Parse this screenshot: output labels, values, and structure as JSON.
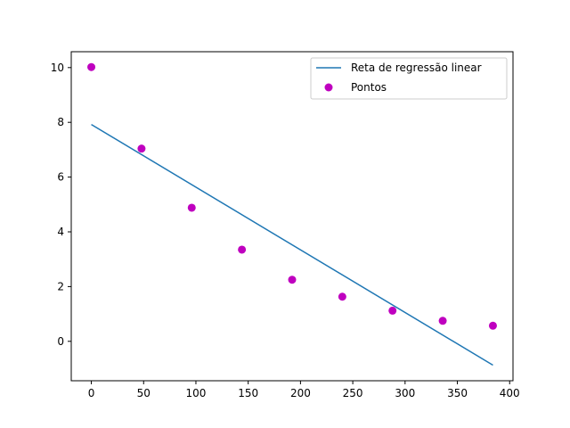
{
  "chart_data": {
    "type": "scatter",
    "title": "",
    "xlabel": "",
    "ylabel": "",
    "xlim": [
      -19.2,
      403.2
    ],
    "ylim": [
      -1.44,
      10.58
    ],
    "xticks": [
      0,
      50,
      100,
      150,
      200,
      250,
      300,
      350,
      400
    ],
    "yticks": [
      0,
      2,
      4,
      6,
      8,
      10
    ],
    "xtick_labels": [
      "0",
      "50",
      "100",
      "150",
      "200",
      "250",
      "300",
      "350",
      "400"
    ],
    "ytick_labels": [
      "0",
      "2",
      "4",
      "6",
      "8",
      "10"
    ],
    "grid": false,
    "legend_position": "top-right",
    "series": [
      {
        "name": "Reta de regressão linear",
        "kind": "line",
        "color": "#1f77b4",
        "x": [
          0,
          384
        ],
        "y": [
          7.92,
          -0.87
        ]
      },
      {
        "name": "Pontos",
        "kind": "scatter",
        "color": "#bf00bf",
        "x": [
          0,
          48,
          96,
          144,
          192,
          240,
          288,
          336,
          384
        ],
        "y": [
          10.02,
          7.04,
          4.88,
          3.35,
          2.25,
          1.63,
          1.12,
          0.75,
          0.57
        ]
      }
    ]
  }
}
